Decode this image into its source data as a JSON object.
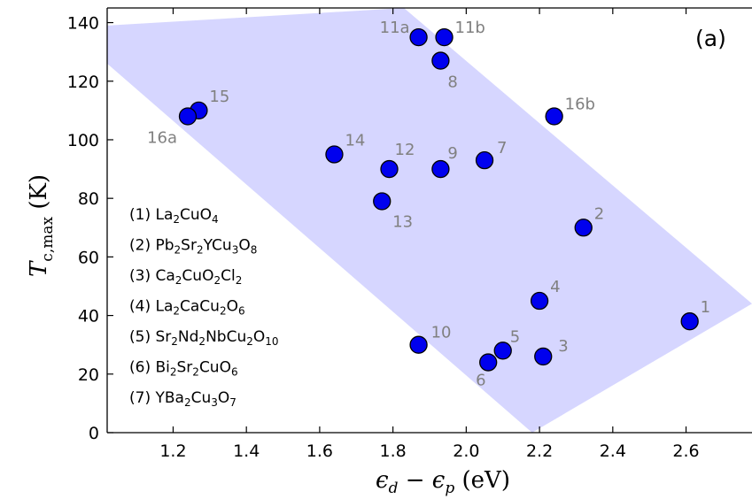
{
  "chart_data": {
    "type": "scatter",
    "panel_label": "(a)",
    "xlabel": "ε_d − ε_p (eV)",
    "ylabel": "T_c,max (K)",
    "xlim": [
      1.02,
      2.78
    ],
    "ylim": [
      0,
      145
    ],
    "xticks": [
      1.2,
      1.4,
      1.6,
      1.8,
      2.0,
      2.2,
      2.4,
      2.6
    ],
    "yticks": [
      0,
      20,
      40,
      60,
      80,
      100,
      120,
      140
    ],
    "grid": false,
    "point_color": "#0000ee",
    "band_color": "#d6d6ff",
    "band": {
      "upper": [
        [
          1.02,
          139
        ],
        [
          1.83,
          145
        ],
        [
          2.78,
          44
        ]
      ],
      "lower": [
        [
          1.02,
          126
        ],
        [
          2.18,
          0
        ]
      ]
    },
    "points": [
      {
        "label": "1",
        "x": 2.61,
        "y": 38
      },
      {
        "label": "2",
        "x": 2.32,
        "y": 70
      },
      {
        "label": "3",
        "x": 2.21,
        "y": 26
      },
      {
        "label": "4",
        "x": 2.2,
        "y": 45
      },
      {
        "label": "5",
        "x": 2.1,
        "y": 28
      },
      {
        "label": "6",
        "x": 2.06,
        "y": 24
      },
      {
        "label": "7",
        "x": 2.05,
        "y": 93
      },
      {
        "label": "8",
        "x": 1.93,
        "y": 127
      },
      {
        "label": "9",
        "x": 1.93,
        "y": 90
      },
      {
        "label": "10",
        "x": 1.87,
        "y": 30
      },
      {
        "label": "11a",
        "x": 1.87,
        "y": 135
      },
      {
        "label": "11b",
        "x": 1.94,
        "y": 135
      },
      {
        "label": "12",
        "x": 1.79,
        "y": 90
      },
      {
        "label": "13",
        "x": 1.77,
        "y": 79
      },
      {
        "label": "14",
        "x": 1.64,
        "y": 95
      },
      {
        "label": "15",
        "x": 1.27,
        "y": 110
      },
      {
        "label": "16a",
        "x": 1.24,
        "y": 108
      },
      {
        "label": "16b",
        "x": 2.24,
        "y": 108
      }
    ],
    "legend_entries": [
      {
        "num": "(1)",
        "parts": [
          [
            "La",
            ""
          ],
          [
            "2",
            "sub"
          ],
          [
            "CuO",
            ""
          ],
          [
            "4",
            "sub"
          ]
        ]
      },
      {
        "num": "(2)",
        "parts": [
          [
            "Pb",
            ""
          ],
          [
            "2",
            "sub"
          ],
          [
            "Sr",
            ""
          ],
          [
            "2",
            "sub"
          ],
          [
            "YCu",
            ""
          ],
          [
            "3",
            "sub"
          ],
          [
            "O",
            ""
          ],
          [
            "8",
            "sub"
          ]
        ]
      },
      {
        "num": "(3)",
        "parts": [
          [
            "Ca",
            ""
          ],
          [
            "2",
            "sub"
          ],
          [
            "CuO",
            ""
          ],
          [
            "2",
            "sub"
          ],
          [
            "Cl",
            ""
          ],
          [
            "2",
            "sub"
          ]
        ]
      },
      {
        "num": "(4)",
        "parts": [
          [
            "La",
            ""
          ],
          [
            "2",
            "sub"
          ],
          [
            "CaCu",
            ""
          ],
          [
            "2",
            "sub"
          ],
          [
            "O",
            ""
          ],
          [
            "6",
            "sub"
          ]
        ]
      },
      {
        "num": "(5)",
        "parts": [
          [
            "Sr",
            ""
          ],
          [
            "2",
            "sub"
          ],
          [
            "Nd",
            ""
          ],
          [
            "2",
            "sub"
          ],
          [
            "NbCu",
            ""
          ],
          [
            "2",
            "sub"
          ],
          [
            "O",
            ""
          ],
          [
            "10",
            "sub"
          ]
        ]
      },
      {
        "num": "(6)",
        "parts": [
          [
            "Bi",
            ""
          ],
          [
            "2",
            "sub"
          ],
          [
            "Sr",
            ""
          ],
          [
            "2",
            "sub"
          ],
          [
            "CuO",
            ""
          ],
          [
            "6",
            "sub"
          ]
        ]
      },
      {
        "num": "(7)",
        "parts": [
          [
            "YBa",
            ""
          ],
          [
            "2",
            "sub"
          ],
          [
            "Cu",
            ""
          ],
          [
            "3",
            "sub"
          ],
          [
            "O",
            ""
          ],
          [
            "7",
            "sub"
          ]
        ]
      }
    ]
  }
}
